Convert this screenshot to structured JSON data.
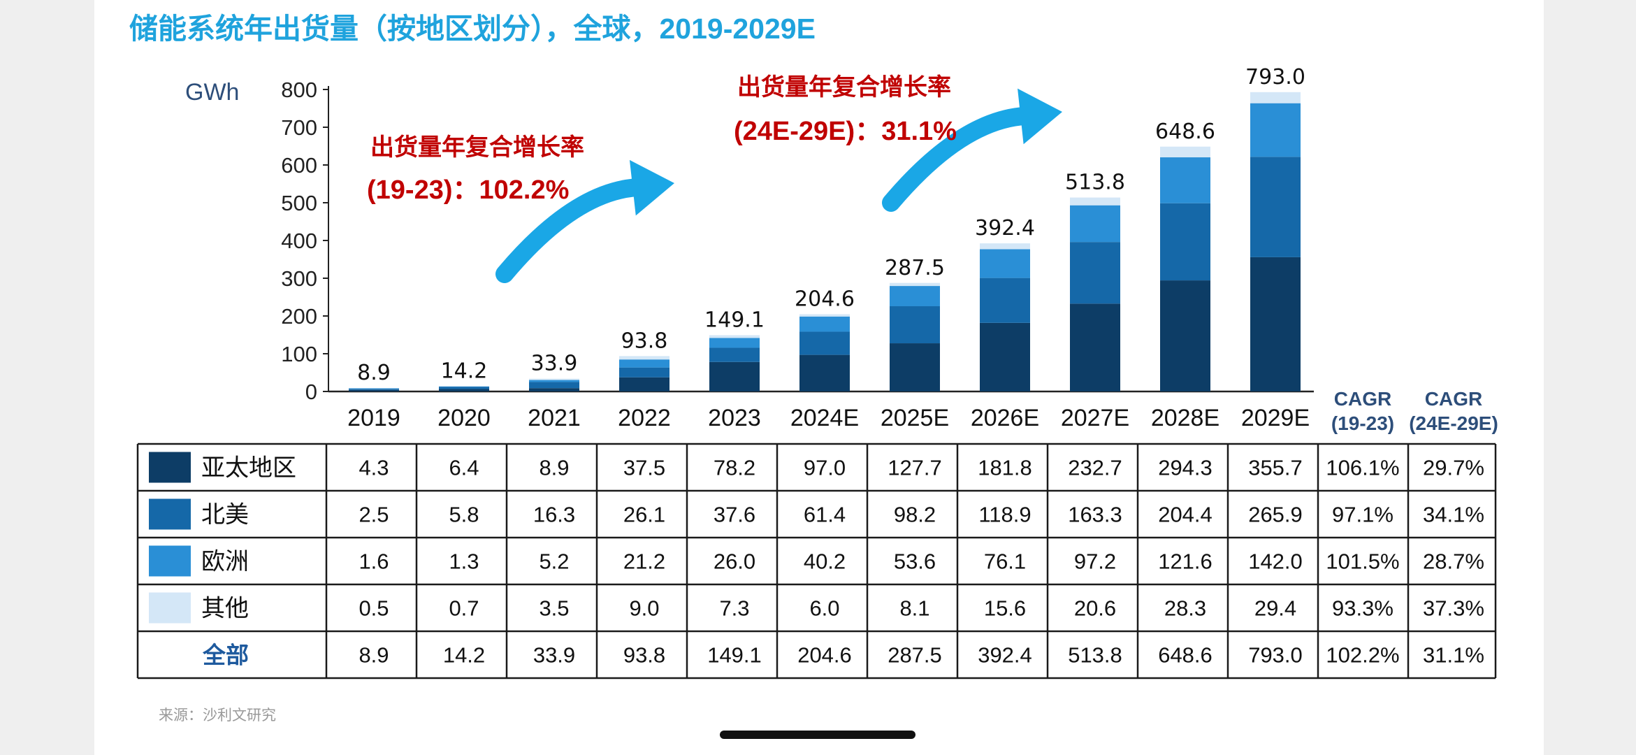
{
  "chart_data": {
    "type": "bar",
    "stacked": true,
    "title": "储能系统年出货量（按地区划分），全球，2019-2029E",
    "unit": "GWh",
    "ylim": [
      0,
      800
    ],
    "yticks": [
      0,
      100,
      200,
      300,
      400,
      500,
      600,
      700,
      800
    ],
    "categories": [
      "2019",
      "2020",
      "2021",
      "2022",
      "2023",
      "2024E",
      "2025E",
      "2026E",
      "2027E",
      "2028E",
      "2029E"
    ],
    "series": [
      {
        "name": "亚太地区",
        "color": "#0d3d66",
        "values": [
          4.3,
          6.4,
          8.9,
          37.5,
          78.2,
          97.0,
          127.7,
          181.8,
          232.7,
          294.3,
          355.7
        ],
        "cagr": [
          "106.1%",
          "29.7%"
        ]
      },
      {
        "name": "北美",
        "color": "#1568a8",
        "values": [
          2.5,
          5.8,
          16.3,
          26.1,
          37.6,
          61.4,
          98.2,
          118.9,
          163.3,
          204.4,
          265.9
        ],
        "cagr": [
          "97.1%",
          "34.1%"
        ]
      },
      {
        "name": "欧洲",
        "color": "#2a8fd6",
        "values": [
          1.6,
          1.3,
          5.2,
          21.2,
          26.0,
          40.2,
          53.6,
          76.1,
          97.2,
          121.6,
          142.0
        ],
        "cagr": [
          "101.5%",
          "28.7%"
        ]
      },
      {
        "name": "其他",
        "color": "#d4e7f7",
        "values": [
          0.5,
          0.7,
          3.5,
          9.0,
          7.3,
          6.0,
          8.1,
          15.6,
          20.6,
          28.3,
          29.4
        ],
        "cagr": [
          "93.3%",
          "37.3%"
        ]
      }
    ],
    "totals": [
      8.9,
      14.2,
      33.9,
      93.8,
      149.1,
      204.6,
      287.5,
      392.4,
      513.8,
      648.6,
      793.0
    ],
    "total_label": "全部",
    "total_cagr": [
      "102.2%",
      "31.1%"
    ],
    "cagr_headers": [
      {
        "line1": "CAGR",
        "line2": "(19-23)"
      },
      {
        "line1": "CAGR",
        "line2": "(24E-29E)"
      }
    ],
    "annotations": [
      {
        "line1": "出货量年复合增长率",
        "line2": "(19-23)：102.2%"
      },
      {
        "line1": "出货量年复合增长率",
        "line2": "(24E-29E)：31.1%"
      }
    ],
    "source": "来源：沙利文研究"
  },
  "colors": {
    "title": "#1fa3dd",
    "annotation": "#c00000",
    "arrow": "#1aa7e6",
    "axis": "#222222",
    "unit": "#2d4e7a",
    "header": "#2d4e7a",
    "total_label": "#1e5a9e",
    "source": "#999999"
  }
}
